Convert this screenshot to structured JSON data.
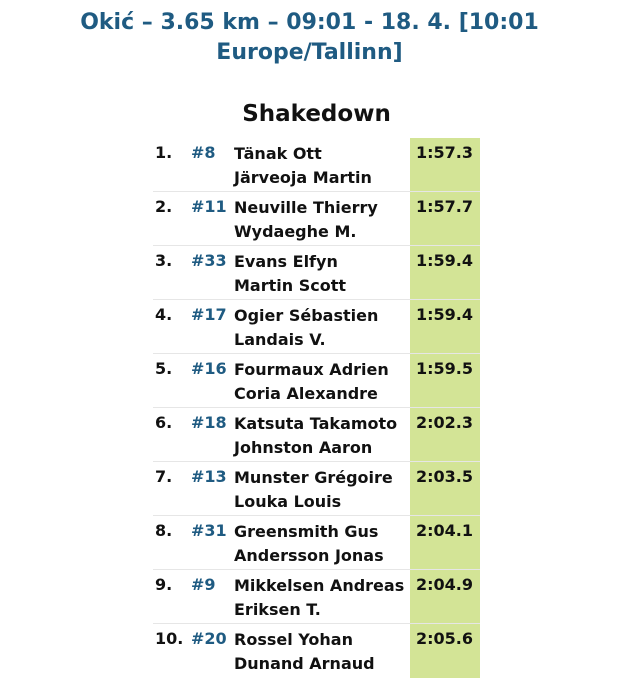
{
  "header": {
    "stage_line1": "Okić – 3.65 km – 09:01 - 18. 4. [10:01",
    "stage_line2": "Europe/Tallinn]"
  },
  "section": {
    "title": "Shakedown"
  },
  "results": [
    {
      "pos": "1.",
      "car": "#8",
      "driver": "Tänak Ott",
      "codriver": "Järveoja Martin",
      "time": "1:57.3"
    },
    {
      "pos": "2.",
      "car": "#11",
      "driver": "Neuville Thierry",
      "codriver": "Wydaeghe M.",
      "time": "1:57.7"
    },
    {
      "pos": "3.",
      "car": "#33",
      "driver": "Evans Elfyn",
      "codriver": "Martin Scott",
      "time": "1:59.4"
    },
    {
      "pos": "4.",
      "car": "#17",
      "driver": "Ogier Sébastien",
      "codriver": "Landais V.",
      "time": "1:59.4"
    },
    {
      "pos": "5.",
      "car": "#16",
      "driver": "Fourmaux Adrien",
      "codriver": "Coria Alexandre",
      "time": "1:59.5"
    },
    {
      "pos": "6.",
      "car": "#18",
      "driver": "Katsuta Takamoto",
      "codriver": "Johnston Aaron",
      "time": "2:02.3"
    },
    {
      "pos": "7.",
      "car": "#13",
      "driver": "Munster Grégoire",
      "codriver": "Louka Louis",
      "time": "2:03.5"
    },
    {
      "pos": "8.",
      "car": "#31",
      "driver": "Greensmith Gus",
      "codriver": "Andersson Jonas",
      "time": "2:04.1"
    },
    {
      "pos": "9.",
      "car": "#9",
      "driver": "Mikkelsen Andreas",
      "codriver": "Eriksen T.",
      "time": "2:04.9"
    },
    {
      "pos": "10.",
      "car": "#20",
      "driver": "Rossel Yohan",
      "codriver": "Dunand Arnaud",
      "time": "2:05.6"
    }
  ],
  "colors": {
    "accent_blue": "#1f5b82",
    "time_cell_green": "#d3e496"
  }
}
